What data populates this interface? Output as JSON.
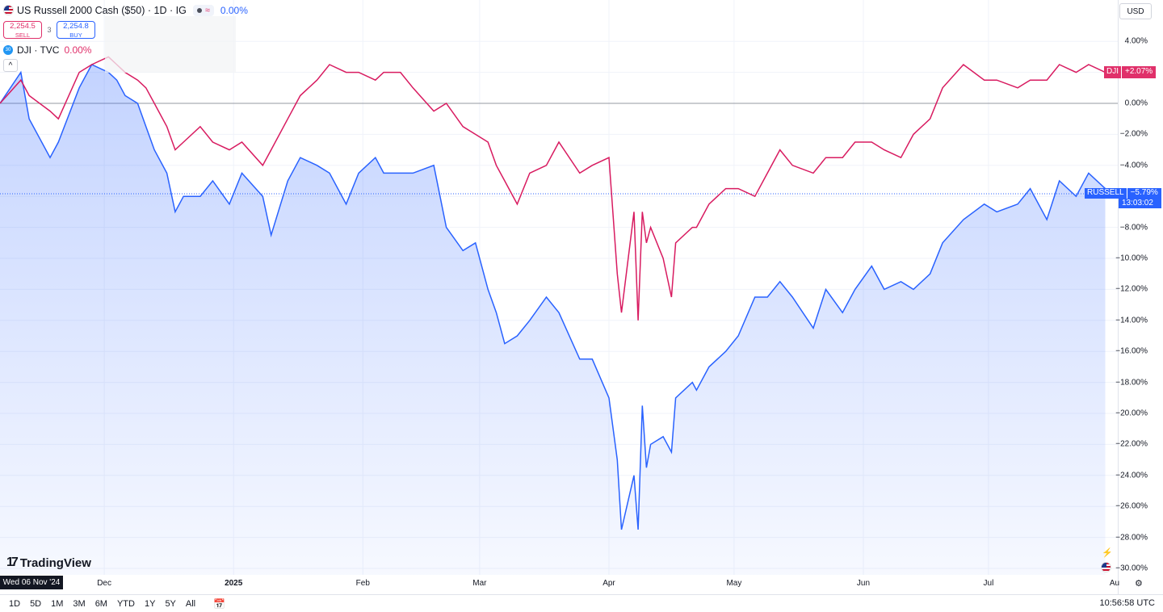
{
  "header": {
    "title": "US Russell 2000 Cash ($50) · 1D · IG",
    "approx_icon": "≈",
    "change": "0.00%",
    "sell_price": "2,254.5",
    "sell_label": "SELL",
    "spread": "3",
    "buy_price": "2,254.8",
    "buy_label": "BUY",
    "compare_symbol": "DJI · TVC",
    "compare_change": "0.00%",
    "collapse_icon": "^"
  },
  "currency": "USD",
  "tags": {
    "dji_name": "DJI",
    "dji_value": "+2.07%",
    "russell_name": "RUSSELL",
    "russell_value": "−5.79%",
    "countdown": "13:03:02"
  },
  "y_axis_labels": [
    "4.00%",
    "0.00%",
    "−2.00%",
    "−4.00%",
    "−8.00%",
    "−10.00%",
    "−12.00%",
    "−14.00%",
    "−16.00%",
    "−18.00%",
    "−20.00%",
    "−22.00%",
    "−24.00%",
    "−26.00%",
    "−28.00%",
    "−30.00%"
  ],
  "x_axis_labels": [
    "Dec",
    "2025",
    "Feb",
    "Mar",
    "Apr",
    "May",
    "Jun",
    "Jul",
    "Au"
  ],
  "crosshair_date": "Wed 06 Nov '24",
  "brand": "TradingView",
  "ranges": [
    "1D",
    "5D",
    "1M",
    "3M",
    "6M",
    "YTD",
    "1Y",
    "5Y",
    "All"
  ],
  "clock": "10:56:58 UTC",
  "colors": {
    "russell": "#2962ff",
    "dji": "#d81b60",
    "accent": "#2962ff"
  },
  "chart_data": {
    "type": "line",
    "x_range": [
      "2024-11-06",
      "2025-08-01"
    ],
    "ylim": [
      -30,
      4
    ],
    "ylabel": "",
    "series": [
      {
        "name": "RUSSELL",
        "x": [
          "2024-11-06",
          "2024-11-11",
          "2024-11-13",
          "2024-11-18",
          "2024-11-20",
          "2024-11-25",
          "2024-11-28",
          "2024-12-02",
          "2024-12-04",
          "2024-12-06",
          "2024-12-09",
          "2024-12-11",
          "2024-12-13",
          "2024-12-16",
          "2024-12-18",
          "2024-12-20",
          "2024-12-24",
          "2024-12-27",
          "2024-12-31",
          "2025-01-03",
          "2025-01-08",
          "2025-01-10",
          "2025-01-14",
          "2025-01-17",
          "2025-01-21",
          "2025-01-24",
          "2025-01-28",
          "2025-01-31",
          "2025-02-04",
          "2025-02-06",
          "2025-02-10",
          "2025-02-13",
          "2025-02-18",
          "2025-02-21",
          "2025-02-25",
          "2025-02-28",
          "2025-03-03",
          "2025-03-05",
          "2025-03-07",
          "2025-03-10",
          "2025-03-13",
          "2025-03-17",
          "2025-03-20",
          "2025-03-25",
          "2025-03-28",
          "2025-04-01",
          "2025-04-03",
          "2025-04-04",
          "2025-04-07",
          "2025-04-08",
          "2025-04-09",
          "2025-04-10",
          "2025-04-11",
          "2025-04-14",
          "2025-04-16",
          "2025-04-17",
          "2025-04-21",
          "2025-04-22",
          "2025-04-25",
          "2025-04-29",
          "2025-05-02",
          "2025-05-06",
          "2025-05-09",
          "2025-05-12",
          "2025-05-15",
          "2025-05-20",
          "2025-05-23",
          "2025-05-27",
          "2025-05-30",
          "2025-06-03",
          "2025-06-06",
          "2025-06-10",
          "2025-06-13",
          "2025-06-17",
          "2025-06-20",
          "2025-06-25",
          "2025-06-30",
          "2025-07-03",
          "2025-07-08",
          "2025-07-11",
          "2025-07-15",
          "2025-07-18",
          "2025-07-22",
          "2025-07-25",
          "2025-07-29"
        ],
        "values": [
          0.0,
          2.0,
          -1.0,
          -3.5,
          -2.5,
          1.0,
          2.5,
          2.0,
          1.5,
          0.5,
          0.0,
          -1.5,
          -3.0,
          -4.5,
          -7.0,
          -6.0,
          -6.0,
          -5.0,
          -6.5,
          -4.5,
          -6.0,
          -8.5,
          -5.0,
          -3.5,
          -4.0,
          -4.5,
          -6.5,
          -4.5,
          -3.5,
          -4.5,
          -4.5,
          -4.5,
          -4.0,
          -8.0,
          -9.5,
          -9.0,
          -12.0,
          -13.5,
          -15.5,
          -15.0,
          -14.0,
          -12.5,
          -13.5,
          -16.5,
          -16.5,
          -19.0,
          -23.0,
          -27.5,
          -24.0,
          -27.5,
          -19.5,
          -23.5,
          -22.0,
          -21.5,
          -22.5,
          -19.0,
          -18.0,
          -18.5,
          -17.0,
          -16.0,
          -15.0,
          -12.5,
          -12.5,
          -11.5,
          -12.5,
          -14.5,
          -12.0,
          -13.5,
          -12.0,
          -10.5,
          -12.0,
          -11.5,
          -12.0,
          -11.0,
          -9.0,
          -7.5,
          -6.5,
          -7.0,
          -6.5,
          -5.5,
          -7.5,
          -5.0,
          -6.0,
          -4.5,
          -5.5
        ]
      },
      {
        "name": "DJI",
        "x": [
          "2024-11-06",
          "2024-11-11",
          "2024-11-13",
          "2024-11-18",
          "2024-11-20",
          "2024-11-25",
          "2024-11-28",
          "2024-12-02",
          "2024-12-04",
          "2024-12-06",
          "2024-12-09",
          "2024-12-11",
          "2024-12-13",
          "2024-12-16",
          "2024-12-18",
          "2024-12-20",
          "2024-12-24",
          "2024-12-27",
          "2024-12-31",
          "2025-01-03",
          "2025-01-08",
          "2025-01-10",
          "2025-01-14",
          "2025-01-17",
          "2025-01-21",
          "2025-01-24",
          "2025-01-28",
          "2025-01-31",
          "2025-02-04",
          "2025-02-06",
          "2025-02-10",
          "2025-02-13",
          "2025-02-18",
          "2025-02-21",
          "2025-02-25",
          "2025-02-28",
          "2025-03-03",
          "2025-03-05",
          "2025-03-07",
          "2025-03-10",
          "2025-03-13",
          "2025-03-17",
          "2025-03-20",
          "2025-03-25",
          "2025-03-28",
          "2025-04-01",
          "2025-04-03",
          "2025-04-04",
          "2025-04-07",
          "2025-04-08",
          "2025-04-09",
          "2025-04-10",
          "2025-04-11",
          "2025-04-14",
          "2025-04-16",
          "2025-04-17",
          "2025-04-21",
          "2025-04-22",
          "2025-04-25",
          "2025-04-29",
          "2025-05-02",
          "2025-05-06",
          "2025-05-09",
          "2025-05-12",
          "2025-05-15",
          "2025-05-20",
          "2025-05-23",
          "2025-05-27",
          "2025-05-30",
          "2025-06-03",
          "2025-06-06",
          "2025-06-10",
          "2025-06-13",
          "2025-06-17",
          "2025-06-20",
          "2025-06-25",
          "2025-06-30",
          "2025-07-03",
          "2025-07-08",
          "2025-07-11",
          "2025-07-15",
          "2025-07-18",
          "2025-07-22",
          "2025-07-25",
          "2025-07-29"
        ],
        "values": [
          0.0,
          1.5,
          0.5,
          -0.5,
          -1.0,
          2.0,
          2.5,
          3.0,
          2.5,
          2.0,
          1.5,
          1.0,
          0.0,
          -1.5,
          -3.0,
          -2.5,
          -1.5,
          -2.5,
          -3.0,
          -2.5,
          -4.0,
          -3.0,
          -1.0,
          0.5,
          1.5,
          2.5,
          2.0,
          2.0,
          1.5,
          2.0,
          2.0,
          1.0,
          -0.5,
          0.0,
          -1.5,
          -2.0,
          -2.5,
          -4.0,
          -5.0,
          -6.5,
          -4.5,
          -4.0,
          -2.5,
          -4.5,
          -4.0,
          -3.5,
          -11.0,
          -13.5,
          -7.0,
          -14.0,
          -7.0,
          -9.0,
          -8.0,
          -10.0,
          -12.5,
          -9.0,
          -8.0,
          -8.0,
          -6.5,
          -5.5,
          -5.5,
          -6.0,
          -4.5,
          -3.0,
          -4.0,
          -4.5,
          -3.5,
          -3.5,
          -2.5,
          -2.5,
          -3.0,
          -3.5,
          -2.0,
          -1.0,
          1.0,
          2.5,
          1.5,
          1.5,
          1.0,
          1.5,
          1.5,
          2.5,
          2.0,
          2.5,
          2.0
        ]
      }
    ]
  }
}
